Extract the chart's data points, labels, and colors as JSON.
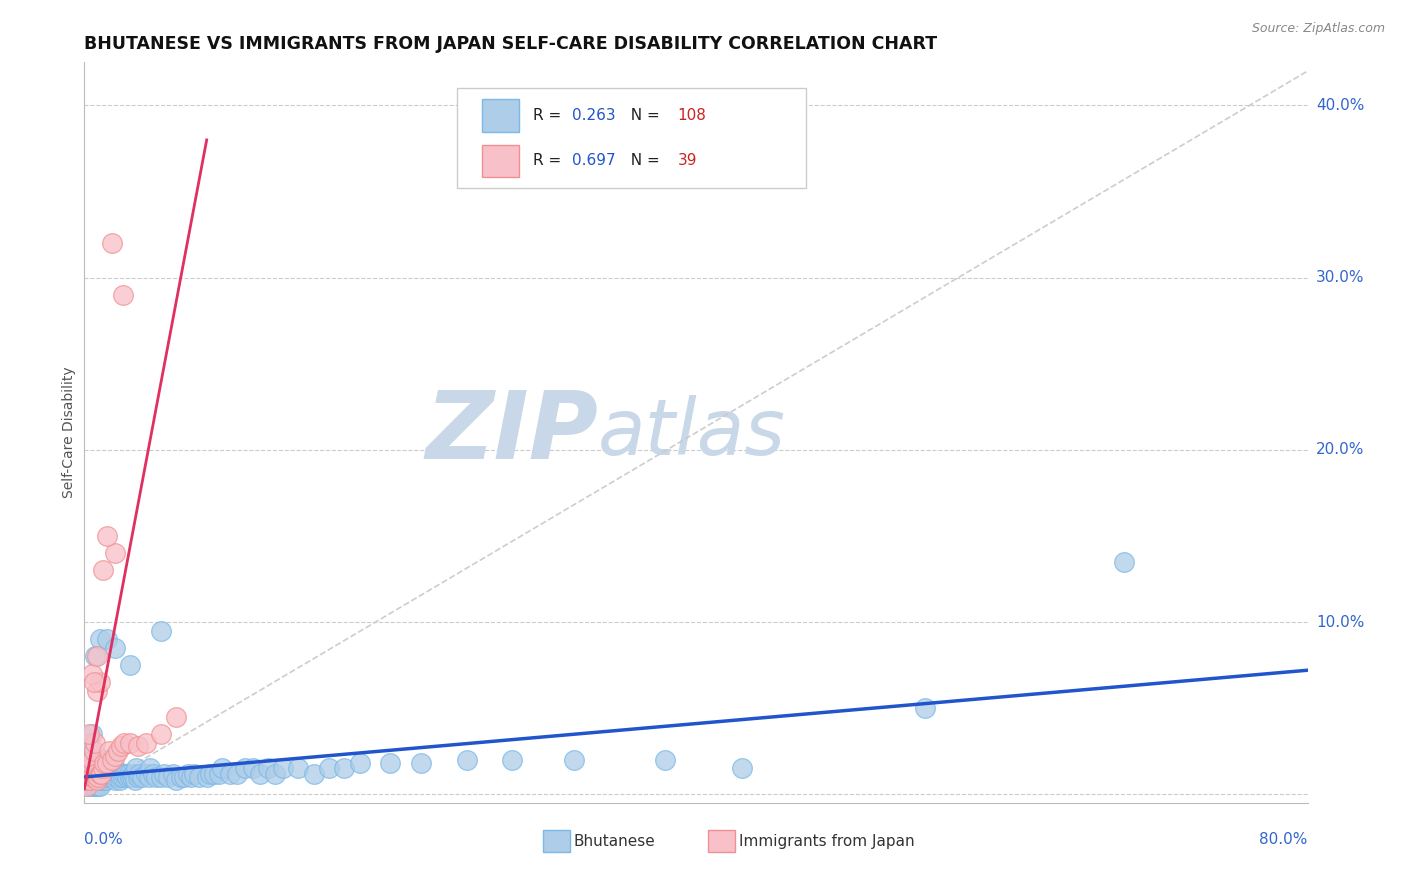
{
  "title": "BHUTANESE VS IMMIGRANTS FROM JAPAN SELF-CARE DISABILITY CORRELATION CHART",
  "source": "Source: ZipAtlas.com",
  "ylabel": "Self-Care Disability",
  "xmin": 0.0,
  "xmax": 0.8,
  "ymin": 0.0,
  "ymax": 0.42,
  "yticks": [
    0.0,
    0.1,
    0.2,
    0.3,
    0.4
  ],
  "ytick_labels": [
    "",
    "10.0%",
    "20.0%",
    "30.0%",
    "40.0%"
  ],
  "blue_R": 0.263,
  "blue_N": 108,
  "pink_R": 0.697,
  "pink_N": 39,
  "blue_edge": "#7ab8e8",
  "blue_face": "#aecde8",
  "pink_edge": "#f09090",
  "pink_face": "#f8c0c8",
  "blue_line_color": "#2255cc",
  "pink_line_color": "#e03060",
  "diag_color": "#c8c8c8",
  "watermark_zip": "ZIP",
  "watermark_atlas": "atlas",
  "watermark_color": "#c8d8e8",
  "title_fontsize": 12.5,
  "legend_R_color": "#2255cc",
  "legend_N_color": "#cc2222",
  "axis_label_color": "#3366cc",
  "blue_x": [
    0.002,
    0.003,
    0.004,
    0.004,
    0.005,
    0.005,
    0.005,
    0.006,
    0.006,
    0.006,
    0.007,
    0.007,
    0.007,
    0.007,
    0.008,
    0.008,
    0.008,
    0.009,
    0.009,
    0.009,
    0.01,
    0.01,
    0.01,
    0.01,
    0.011,
    0.011,
    0.012,
    0.012,
    0.013,
    0.013,
    0.014,
    0.014,
    0.015,
    0.015,
    0.016,
    0.017,
    0.018,
    0.019,
    0.02,
    0.02,
    0.021,
    0.022,
    0.023,
    0.024,
    0.025,
    0.026,
    0.027,
    0.028,
    0.029,
    0.03,
    0.031,
    0.032,
    0.033,
    0.034,
    0.035,
    0.036,
    0.038,
    0.04,
    0.042,
    0.043,
    0.045,
    0.047,
    0.05,
    0.052,
    0.055,
    0.058,
    0.06,
    0.063,
    0.065,
    0.068,
    0.07,
    0.072,
    0.075,
    0.08,
    0.082,
    0.085,
    0.088,
    0.09,
    0.095,
    0.1,
    0.105,
    0.11,
    0.115,
    0.12,
    0.125,
    0.13,
    0.14,
    0.15,
    0.16,
    0.17,
    0.18,
    0.2,
    0.22,
    0.25,
    0.28,
    0.32,
    0.38,
    0.43,
    0.55,
    0.68,
    0.003,
    0.005,
    0.007,
    0.01,
    0.015,
    0.02,
    0.03,
    0.05
  ],
  "blue_y": [
    0.005,
    0.008,
    0.006,
    0.01,
    0.005,
    0.008,
    0.012,
    0.005,
    0.008,
    0.015,
    0.005,
    0.01,
    0.015,
    0.02,
    0.005,
    0.008,
    0.012,
    0.005,
    0.01,
    0.018,
    0.005,
    0.01,
    0.015,
    0.02,
    0.008,
    0.015,
    0.008,
    0.02,
    0.01,
    0.018,
    0.008,
    0.015,
    0.01,
    0.02,
    0.012,
    0.015,
    0.01,
    0.012,
    0.008,
    0.015,
    0.01,
    0.012,
    0.008,
    0.01,
    0.01,
    0.012,
    0.012,
    0.01,
    0.012,
    0.01,
    0.01,
    0.012,
    0.008,
    0.015,
    0.01,
    0.012,
    0.01,
    0.012,
    0.01,
    0.015,
    0.012,
    0.01,
    0.01,
    0.012,
    0.01,
    0.012,
    0.008,
    0.01,
    0.01,
    0.012,
    0.01,
    0.012,
    0.01,
    0.01,
    0.012,
    0.012,
    0.012,
    0.015,
    0.012,
    0.012,
    0.015,
    0.015,
    0.012,
    0.015,
    0.012,
    0.015,
    0.015,
    0.012,
    0.015,
    0.015,
    0.018,
    0.018,
    0.018,
    0.02,
    0.02,
    0.02,
    0.02,
    0.015,
    0.05,
    0.135,
    0.03,
    0.035,
    0.08,
    0.09,
    0.09,
    0.085,
    0.075,
    0.095
  ],
  "pink_x": [
    0.002,
    0.003,
    0.004,
    0.004,
    0.005,
    0.005,
    0.006,
    0.006,
    0.007,
    0.007,
    0.008,
    0.008,
    0.009,
    0.01,
    0.01,
    0.011,
    0.012,
    0.013,
    0.015,
    0.016,
    0.018,
    0.02,
    0.022,
    0.024,
    0.026,
    0.03,
    0.035,
    0.04,
    0.05,
    0.06,
    0.005,
    0.008,
    0.012,
    0.02,
    0.025,
    0.003,
    0.006,
    0.015,
    0.018
  ],
  "pink_y": [
    0.005,
    0.008,
    0.008,
    0.015,
    0.01,
    0.02,
    0.01,
    0.025,
    0.012,
    0.03,
    0.008,
    0.06,
    0.01,
    0.012,
    0.065,
    0.012,
    0.015,
    0.018,
    0.018,
    0.025,
    0.02,
    0.022,
    0.025,
    0.028,
    0.03,
    0.03,
    0.028,
    0.03,
    0.035,
    0.045,
    0.07,
    0.08,
    0.13,
    0.14,
    0.29,
    0.035,
    0.065,
    0.15,
    0.32
  ]
}
